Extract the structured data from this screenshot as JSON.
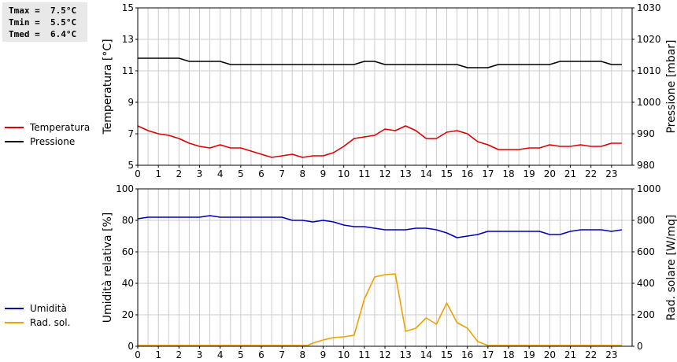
{
  "stats": {
    "tmax": "Tmax =  7.5°C",
    "tmin": "Tmin =  5.5°C",
    "tmed": "Tmed =  6.4°C"
  },
  "legend_top": [
    {
      "label": "Temperatura",
      "color": "#dd0000"
    },
    {
      "label": "Pressione",
      "color": "#000000"
    }
  ],
  "legend_bottom": [
    {
      "label": "Umidità",
      "color": "#0000bb"
    },
    {
      "label": "Rad. sol.",
      "color": "#f0a000"
    }
  ],
  "chart_data": [
    {
      "type": "line",
      "ylabel": "Temperatura [°C]",
      "y2label": "Pressione [mbar]",
      "ylim": [
        5,
        15
      ],
      "y2lim": [
        980,
        1030
      ],
      "yticks": [
        5,
        7,
        9,
        11,
        13,
        15
      ],
      "y2ticks": [
        980,
        990,
        1000,
        1010,
        1020,
        1030
      ],
      "xlim": [
        0,
        24
      ],
      "xticks": [
        0,
        1,
        2,
        3,
        4,
        5,
        6,
        7,
        8,
        9,
        10,
        11,
        12,
        13,
        14,
        15,
        16,
        17,
        18,
        19,
        20,
        21,
        22,
        23
      ],
      "series": [
        {
          "name": "Temperatura",
          "axis": "left",
          "color": "#dd0000",
          "x": [
            0,
            0.5,
            1,
            1.5,
            2,
            2.5,
            3,
            3.5,
            4,
            4.5,
            5,
            5.5,
            6,
            6.5,
            7,
            7.5,
            8,
            8.5,
            9,
            9.5,
            10,
            10.5,
            11,
            11.5,
            12,
            12.5,
            13,
            13.5,
            14,
            14.5,
            15,
            15.5,
            16,
            16.5,
            17,
            17.5,
            18,
            18.5,
            19,
            19.5,
            20,
            20.5,
            21,
            21.5,
            22,
            22.5,
            23,
            23.5
          ],
          "y": [
            7.5,
            7.2,
            7.0,
            6.9,
            6.7,
            6.4,
            6.2,
            6.1,
            6.3,
            6.1,
            6.1,
            5.9,
            5.7,
            5.5,
            5.6,
            5.7,
            5.5,
            5.6,
            5.6,
            5.8,
            6.2,
            6.7,
            6.8,
            6.9,
            7.3,
            7.2,
            7.5,
            7.2,
            6.7,
            6.7,
            7.1,
            7.2,
            7.0,
            6.5,
            6.3,
            6.0,
            6.0,
            6.0,
            6.1,
            6.1,
            6.3,
            6.2,
            6.2,
            6.3,
            6.2,
            6.2,
            6.4,
            6.4
          ]
        },
        {
          "name": "Pressione",
          "axis": "right",
          "color": "#000000",
          "x": [
            0,
            0.5,
            1,
            1.5,
            2,
            2.5,
            3,
            3.5,
            4,
            4.5,
            5,
            5.5,
            6,
            6.5,
            7,
            7.5,
            8,
            8.5,
            9,
            9.5,
            10,
            10.5,
            11,
            11.5,
            12,
            12.5,
            13,
            13.5,
            14,
            14.5,
            15,
            15.5,
            16,
            16.5,
            17,
            17.5,
            18,
            18.5,
            19,
            19.5,
            20,
            20.5,
            21,
            21.5,
            22,
            22.5,
            23,
            23.5
          ],
          "y": [
            1014,
            1014,
            1014,
            1014,
            1014,
            1013,
            1013,
            1013,
            1013,
            1012,
            1012,
            1012,
            1012,
            1012,
            1012,
            1012,
            1012,
            1012,
            1012,
            1012,
            1012,
            1012,
            1013,
            1013,
            1012,
            1012,
            1012,
            1012,
            1012,
            1012,
            1012,
            1012,
            1011,
            1011,
            1011,
            1012,
            1012,
            1012,
            1012,
            1012,
            1012,
            1013,
            1013,
            1013,
            1013,
            1013,
            1012,
            1012
          ]
        }
      ]
    },
    {
      "type": "line",
      "ylabel": "Umidità relativa [%]",
      "y2label": "Rad. solare [W/mq]",
      "ylim": [
        0,
        100
      ],
      "y2lim": [
        0,
        1000
      ],
      "yticks": [
        0,
        20,
        40,
        60,
        80,
        100
      ],
      "y2ticks": [
        0,
        200,
        400,
        600,
        800,
        1000
      ],
      "xlim": [
        0,
        24
      ],
      "xticks": [
        0,
        1,
        2,
        3,
        4,
        5,
        6,
        7,
        8,
        9,
        10,
        11,
        12,
        13,
        14,
        15,
        16,
        17,
        18,
        19,
        20,
        21,
        22,
        23
      ],
      "series": [
        {
          "name": "Umidità",
          "axis": "left",
          "color": "#0000bb",
          "x": [
            0,
            0.5,
            1,
            1.5,
            2,
            2.5,
            3,
            3.5,
            4,
            4.5,
            5,
            5.5,
            6,
            6.5,
            7,
            7.5,
            8,
            8.5,
            9,
            9.5,
            10,
            10.5,
            11,
            11.5,
            12,
            12.5,
            13,
            13.5,
            14,
            14.5,
            15,
            15.5,
            16,
            16.5,
            17,
            17.5,
            18,
            18.5,
            19,
            19.5,
            20,
            20.5,
            21,
            21.5,
            22,
            22.5,
            23,
            23.5
          ],
          "y": [
            81,
            82,
            82,
            82,
            82,
            82,
            82,
            83,
            82,
            82,
            82,
            82,
            82,
            82,
            82,
            80,
            80,
            79,
            80,
            79,
            77,
            76,
            76,
            75,
            74,
            74,
            74,
            75,
            75,
            74,
            72,
            69,
            70,
            71,
            73,
            73,
            73,
            73,
            73,
            73,
            71,
            71,
            73,
            74,
            74,
            74,
            73,
            74
          ]
        },
        {
          "name": "Rad. sol.",
          "axis": "right",
          "color": "#f0a000",
          "x": [
            0,
            0.5,
            1,
            1.5,
            2,
            2.5,
            3,
            3.5,
            4,
            4.5,
            5,
            5.5,
            6,
            6.5,
            7,
            7.5,
            8,
            8.25,
            8.5,
            9,
            9.5,
            10,
            10.5,
            11,
            11.5,
            12,
            12.5,
            13,
            13.5,
            14,
            14.5,
            15,
            15.5,
            16,
            16.5,
            17,
            17.5,
            18,
            18.5,
            19,
            19.5,
            20,
            20.5,
            21,
            21.5,
            22,
            22.5,
            23,
            23.5
          ],
          "y": [
            5,
            5,
            5,
            5,
            5,
            5,
            5,
            5,
            5,
            5,
            5,
            5,
            5,
            5,
            5,
            5,
            5,
            5,
            20,
            40,
            55,
            60,
            70,
            300,
            440,
            455,
            460,
            95,
            115,
            180,
            140,
            275,
            150,
            115,
            30,
            5,
            5,
            5,
            5,
            5,
            5,
            5,
            5,
            5,
            5,
            5,
            5,
            5,
            5
          ]
        }
      ]
    }
  ]
}
